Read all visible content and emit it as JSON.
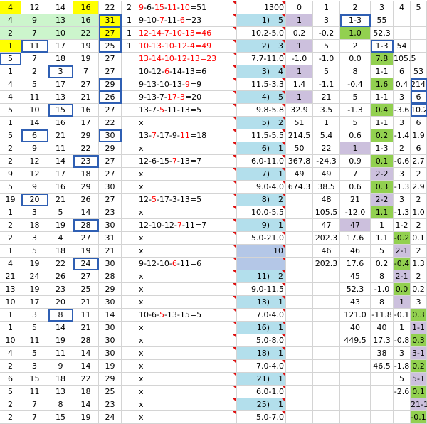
{
  "rows": [
    {
      "a": "4",
      "b": "12",
      "c": "14",
      "d": "16",
      "e": "22",
      "f": "2",
      "g": [
        [
          "9",
          "r"
        ],
        [
          "-6-"
        ],
        [
          "15",
          "r"
        ],
        [
          "-"
        ],
        [
          "11",
          "r"
        ],
        [
          "-"
        ],
        [
          "10",
          "r"
        ],
        [
          "=51"
        ]
      ],
      "h": "1300",
      "i": "0",
      "j": "1",
      "k": "2",
      "l": "3",
      "m": "4",
      "n": "5"
    },
    {
      "a": "4",
      "b": "9",
      "c": "13",
      "d": "16",
      "e": "31",
      "f": "1",
      "g": [
        [
          "9-10-"
        ],
        [
          "7",
          "r"
        ],
        [
          "-11-"
        ],
        [
          "6",
          "r"
        ],
        [
          "=23"
        ]
      ],
      "h": "1)",
      "h2": "5",
      "i": "1",
      "j": "3",
      "k": "1-3",
      "l": "55",
      "m": "",
      "n": ""
    },
    {
      "a": "2",
      "b": "7",
      "c": "10",
      "d": "22",
      "e": "27",
      "f": "1",
      "g": [
        [
          "12-14-7-10-13=46",
          "r"
        ]
      ],
      "h": "10.2-5.0",
      "i": "0.2",
      "j": "-0.2",
      "k": "1.0",
      "l": "52.3",
      "m": "",
      "n": ""
    },
    {
      "a": "1",
      "b": "11",
      "c": "17",
      "d": "19",
      "e": "25",
      "f": "1",
      "g": [
        [
          "10-13-10-12-4=49",
          "r"
        ]
      ],
      "h": "2)",
      "h2": "3",
      "i": "1",
      "j": "5",
      "k": "2",
      "l": "1-3",
      "m": "54",
      "n": ""
    },
    {
      "a": "5",
      "b": "7",
      "c": "18",
      "d": "19",
      "e": "27",
      "f": "",
      "g": [
        [
          "13-14-10-12-13=23",
          "r"
        ]
      ],
      "h": "7.7-11.0",
      "i": "-1.0",
      "j": "-1.0",
      "k": "0.0",
      "l": "7.8",
      "m": "105.5",
      "n": ""
    },
    {
      "a": "1",
      "b": "2",
      "c": "3",
      "d": "7",
      "e": "27",
      "f": "",
      "g": [
        [
          "10-12-"
        ],
        [
          "6",
          "r"
        ],
        [
          "-14-13=6"
        ]
      ],
      "h": "3)",
      "h2": "4",
      "i": "1",
      "j": "5",
      "k": "8",
      "l": "1-1",
      "m": "6",
      "n": "53"
    },
    {
      "a": "4",
      "b": "5",
      "c": "17",
      "d": "27",
      "e": "29",
      "f": "",
      "g": [
        [
          "9-13-10-13-"
        ],
        [
          "9",
          "r"
        ],
        [
          "=9"
        ]
      ],
      "h": "11.5-3.3",
      "i": "1.4",
      "j": "-1.1",
      "k": "-0.4",
      "l": "1.6",
      "m": "0.4",
      "n": "214.5"
    },
    {
      "a": "4",
      "b": "11",
      "c": "13",
      "d": "21",
      "e": "26",
      "f": "",
      "g": [
        [
          "9-13-7-"
        ],
        [
          "17-3",
          "r"
        ],
        [
          "=20"
        ]
      ],
      "h": "4)",
      "h2": "5",
      "i": "1",
      "j": "21",
      "k": "5",
      "l": "1-1",
      "m": "3",
      "n": "6"
    },
    {
      "a": "5",
      "b": "10",
      "c": "15",
      "d": "16",
      "e": "27",
      "f": "",
      "g": [
        [
          "13-7-"
        ],
        [
          "5",
          "r"
        ],
        [
          "-11-13=5"
        ]
      ],
      "h": "9.8-5.8",
      "i": "32.9",
      "j": "3.5",
      "k": "-1.3",
      "l": "0.4",
      "m": "-3.6",
      "n": "10.2"
    },
    {
      "a": "1",
      "b": "14",
      "c": "16",
      "d": "17",
      "e": "22",
      "f": "",
      "g": [
        [
          "x"
        ]
      ],
      "h": "5)",
      "h2": "2",
      "i": "51",
      "j": "1",
      "k": "5",
      "l": "1-1",
      "m": "3",
      "n": "6"
    },
    {
      "a": "5",
      "b": "6",
      "c": "21",
      "d": "29",
      "e": "30",
      "f": "",
      "g": [
        [
          "13-"
        ],
        [
          "7",
          "r"
        ],
        [
          "-17-9-"
        ],
        [
          "11",
          "r"
        ],
        [
          "=18"
        ]
      ],
      "h": "11.5-5.5",
      "i": "214.5",
      "j": "5.4",
      "k": "0.6",
      "l": "0.2",
      "m": "-1.4",
      "n": "1.9"
    },
    {
      "a": "2",
      "b": "9",
      "c": "11",
      "d": "22",
      "e": "29",
      "f": "",
      "g": [
        [
          "x"
        ]
      ],
      "h": "6)",
      "h2": "1",
      "i": "50",
      "j": "22",
      "k": "1",
      "l": "1-3",
      "m": "2",
      "n": "6"
    },
    {
      "a": "2",
      "b": "12",
      "c": "14",
      "d": "23",
      "e": "27",
      "f": "",
      "g": [
        [
          "12-6-15-"
        ],
        [
          "7",
          "r"
        ],
        [
          "-13=7"
        ]
      ],
      "h": "6.0-11.0",
      "i": "367.8",
      "j": "-24.3",
      "k": "0.9",
      "l": "0.1",
      "m": "-0.6",
      "n": "2.7"
    },
    {
      "a": "9",
      "b": "12",
      "c": "17",
      "d": "18",
      "e": "27",
      "f": "",
      "g": [
        [
          "x"
        ]
      ],
      "h": "7)",
      "h2": "1",
      "i": "49",
      "j": "49",
      "k": "7",
      "l": "2-2",
      "m": "3",
      "n": "2"
    },
    {
      "a": "5",
      "b": "9",
      "c": "16",
      "d": "29",
      "e": "30",
      "f": "",
      "g": [
        [
          "x"
        ]
      ],
      "h": "9.0-4.0",
      "i": "674.3",
      "j": "38.5",
      "k": "0.6",
      "l": "0.3",
      "m": "-1.3",
      "n": "2.9"
    },
    {
      "a": "19",
      "b": "20",
      "c": "21",
      "d": "26",
      "e": "27",
      "f": "",
      "g": [
        [
          "12-"
        ],
        [
          "5",
          "r"
        ],
        [
          "-17-3-13=5"
        ]
      ],
      "h": "8)",
      "h2": "2",
      "i": "",
      "j": "48",
      "k": "21",
      "l": "2-2",
      "m": "3",
      "n": "2"
    },
    {
      "a": "1",
      "b": "3",
      "c": "5",
      "d": "14",
      "e": "23",
      "f": "",
      "g": [
        [
          "x"
        ]
      ],
      "h": "10.0-5.5",
      "i": "",
      "j": "105.5",
      "k": "-12.0",
      "l": "1.1",
      "m": "-1.3",
      "n": "1.0"
    },
    {
      "a": "2",
      "b": "18",
      "c": "19",
      "d": "28",
      "e": "30",
      "f": "",
      "g": [
        [
          "12-10-12-"
        ],
        [
          "7",
          "r"
        ],
        [
          "-11=7"
        ]
      ],
      "h": "9)",
      "h2": "1",
      "i": "",
      "j": "47",
      "k": "47",
      "l": "1",
      "m": "1-2",
      "n": "2"
    },
    {
      "a": "2",
      "b": "3",
      "c": "4",
      "d": "27",
      "e": "31",
      "f": "",
      "g": [
        [
          "x"
        ]
      ],
      "h": "5.0-21.0",
      "i": "",
      "j": "202.3",
      "k": "17.6",
      "l": "1.1",
      "m": "-0.2",
      "n": "0.1"
    },
    {
      "a": "1",
      "b": "5",
      "c": "18",
      "d": "19",
      "e": "21",
      "f": "",
      "g": [
        [
          "x"
        ]
      ],
      "h": "",
      "h2": "10",
      "i": "",
      "j": "46",
      "k": "46",
      "l": "5",
      "m": "2-1",
      "n": "2"
    },
    {
      "a": "4",
      "b": "19",
      "c": "22",
      "d": "24",
      "e": "30",
      "f": "",
      "g": [
        [
          "9-12-10-"
        ],
        [
          "6",
          "r"
        ],
        [
          "-11=6"
        ]
      ],
      "h": "",
      "h2": "",
      "i": "",
      "j": "202.3",
      "k": "17.6",
      "l": "0.2",
      "m": "-0.4",
      "n": "1.3"
    },
    {
      "a": "21",
      "b": "24",
      "c": "26",
      "d": "27",
      "e": "28",
      "f": "",
      "g": [
        [
          "x"
        ]
      ],
      "h": "11)",
      "h2": "2",
      "i": "",
      "j": "",
      "k": "45",
      "l": "8",
      "m": "2-1",
      "n": "2"
    },
    {
      "a": "13",
      "b": "19",
      "c": "23",
      "d": "25",
      "e": "29",
      "f": "",
      "g": [
        [
          "x"
        ]
      ],
      "h": "9.0-11.5",
      "i": "",
      "j": "",
      "k": "52.3",
      "l": "-1.0",
      "m": "0.0",
      "n": "0.2"
    },
    {
      "a": "10",
      "b": "17",
      "c": "20",
      "d": "21",
      "e": "30",
      "f": "",
      "g": [
        [
          "x"
        ]
      ],
      "h": "13)",
      "h2": "1",
      "i": "",
      "j": "",
      "k": "43",
      "l": "8",
      "m": "1",
      "n": "3"
    },
    {
      "a": "1",
      "b": "3",
      "c": "8",
      "d": "11",
      "e": "14",
      "f": "",
      "g": [
        [
          "10-6-"
        ],
        [
          "5",
          "r"
        ],
        [
          "-13-15=5"
        ]
      ],
      "h": "7.0-4.0",
      "i": "",
      "j": "",
      "k": "121.0",
      "l": "-11.8",
      "m": "-0.1",
      "n": "0.3"
    },
    {
      "a": "1",
      "b": "5",
      "c": "14",
      "d": "21",
      "e": "30",
      "f": "",
      "g": [
        [
          "x"
        ]
      ],
      "h": "16)",
      "h2": "1",
      "i": "",
      "j": "",
      "k": "40",
      "l": "40",
      "m": "1",
      "n": "1-1"
    },
    {
      "a": "10",
      "b": "11",
      "c": "19",
      "d": "28",
      "e": "30",
      "f": "",
      "g": [
        [
          "x"
        ]
      ],
      "h": "5.0-8.0",
      "i": "",
      "j": "",
      "k": "449.5",
      "l": "17.3",
      "m": "-0.8",
      "n": "0.3"
    },
    {
      "a": "4",
      "b": "5",
      "c": "11",
      "d": "14",
      "e": "30",
      "f": "",
      "g": [
        [
          "x"
        ]
      ],
      "h": "18)",
      "h2": "1",
      "i": "",
      "j": "",
      "k": "",
      "l": "38",
      "m": "3",
      "n": "3-1"
    },
    {
      "a": "2",
      "b": "3",
      "c": "9",
      "d": "14",
      "e": "19",
      "f": "",
      "g": [
        [
          "x"
        ]
      ],
      "h": "7.0-4.0",
      "i": "",
      "j": "",
      "k": "",
      "l": "46.5",
      "m": "-1.8",
      "n": "0.2"
    },
    {
      "a": "6",
      "b": "15",
      "c": "18",
      "d": "22",
      "e": "29",
      "f": "",
      "g": [
        [
          "x"
        ]
      ],
      "h": "21)",
      "h2": "1",
      "i": "",
      "j": "",
      "k": "",
      "l": "",
      "m": "5",
      "n": "5-1"
    },
    {
      "a": "5",
      "b": "11",
      "c": "13",
      "d": "18",
      "e": "25",
      "f": "",
      "g": [
        [
          "x"
        ]
      ],
      "h": "6.0-1.0",
      "i": "",
      "j": "",
      "k": "",
      "l": "",
      "m": "-2.6",
      "n": "0.1"
    },
    {
      "a": "2",
      "b": "7",
      "c": "8",
      "d": "14",
      "e": "23",
      "f": "",
      "g": [
        [
          "x"
        ]
      ],
      "h": "25)",
      "h2": "1",
      "i": "",
      "j": "",
      "k": "",
      "l": "",
      "m": "",
      "n": "21-1"
    },
    {
      "a": "2",
      "b": "7",
      "c": "15",
      "d": "19",
      "e": "24",
      "f": "",
      "g": [
        [
          "x"
        ]
      ],
      "h": "5.0-7.0",
      "i": "",
      "j": "",
      "k": "",
      "l": "",
      "m": "",
      "n": "-0.1"
    }
  ],
  "colors": {
    "yellow": "#ffff00",
    "light_green": "#ccf5cc",
    "light_blue": "#b3dfec",
    "lavender": "#ccc0dd",
    "green": "#92d050",
    "box_border": "#2f5fb3",
    "red_text": "#ff0000"
  }
}
